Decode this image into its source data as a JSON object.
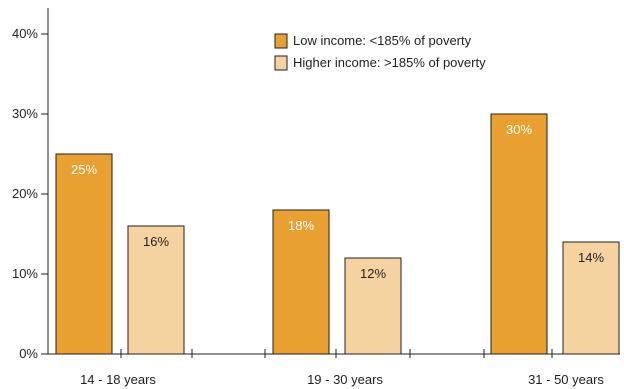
{
  "chart_data": {
    "type": "bar",
    "categories": [
      "14 - 18 years",
      "19 - 30 years",
      "31 - 50 years"
    ],
    "series": [
      {
        "name": "Low income: <185% of poverty",
        "values": [
          25,
          18,
          30
        ],
        "labels": [
          "25%",
          "18%",
          "30%"
        ],
        "color": "#e8a030",
        "label_color": "#ffffff"
      },
      {
        "name": "Higher income: >185% of poverty",
        "values": [
          16,
          12,
          14
        ],
        "labels": [
          "16%",
          "12%",
          "14%"
        ],
        "color": "#f5d3a1",
        "label_color": "#231f20"
      }
    ],
    "yticks": [
      0,
      10,
      20,
      30,
      40
    ],
    "ytick_labels": [
      "0%",
      "10%",
      "20%",
      "30%",
      "40%"
    ],
    "ylim": [
      0,
      40
    ],
    "xlabel": "",
    "ylabel": "",
    "grid": false,
    "legend_position": "top-center"
  }
}
